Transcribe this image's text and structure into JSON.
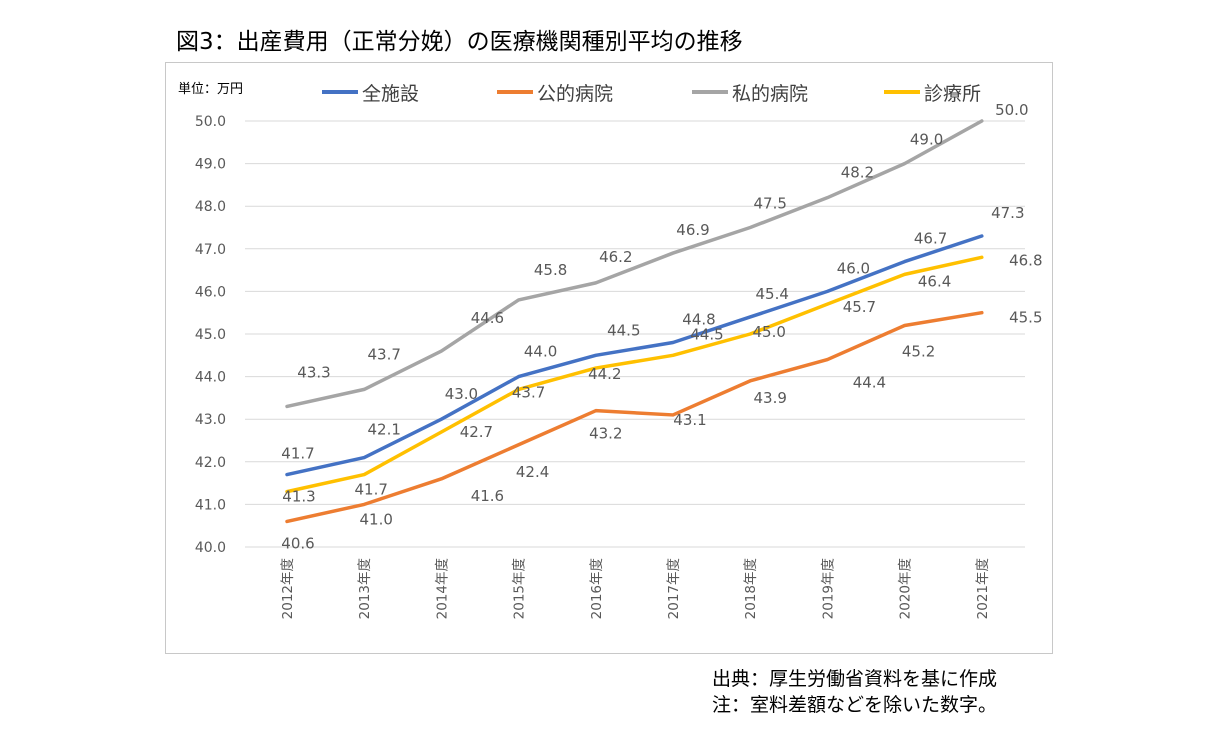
{
  "figure": {
    "title": "図3：出産費用（正常分娩）の医療機関種別平均の推移",
    "source_note": "出典：厚生労働省資料を基に作成",
    "footnote": "注：室料差額などを除いた数字。"
  },
  "chart_data": {
    "type": "line",
    "unit_label": "単位：万円",
    "categories": [
      "2012年度",
      "2013年度",
      "2014年度",
      "2015年度",
      "2016年度",
      "2017年度",
      "2018年度",
      "2019年度",
      "2020年度",
      "2021年度"
    ],
    "ylim": [
      40.0,
      50.0
    ],
    "yticks": [
      "40.0",
      "41.0",
      "42.0",
      "43.0",
      "44.0",
      "45.0",
      "46.0",
      "47.0",
      "48.0",
      "49.0",
      "50.0"
    ],
    "grid": true,
    "legend_position": "top",
    "series": [
      {
        "name": "全施設",
        "color": "#4472c4",
        "values": [
          41.7,
          42.1,
          43.0,
          44.0,
          44.5,
          44.8,
          45.4,
          46.0,
          46.7,
          47.3
        ]
      },
      {
        "name": "公的病院",
        "color": "#ed7d31",
        "values": [
          40.6,
          41.0,
          41.6,
          42.4,
          43.2,
          43.1,
          43.9,
          44.4,
          45.2,
          45.5
        ]
      },
      {
        "name": "私的病院",
        "color": "#a5a5a5",
        "values": [
          43.3,
          43.7,
          44.6,
          45.8,
          46.2,
          46.9,
          47.5,
          48.2,
          49.0,
          50.0
        ]
      },
      {
        "name": "診療所",
        "color": "#ffc000",
        "values": [
          41.3,
          41.7,
          42.7,
          43.7,
          44.2,
          44.5,
          45.0,
          45.7,
          46.4,
          46.8
        ]
      }
    ]
  }
}
